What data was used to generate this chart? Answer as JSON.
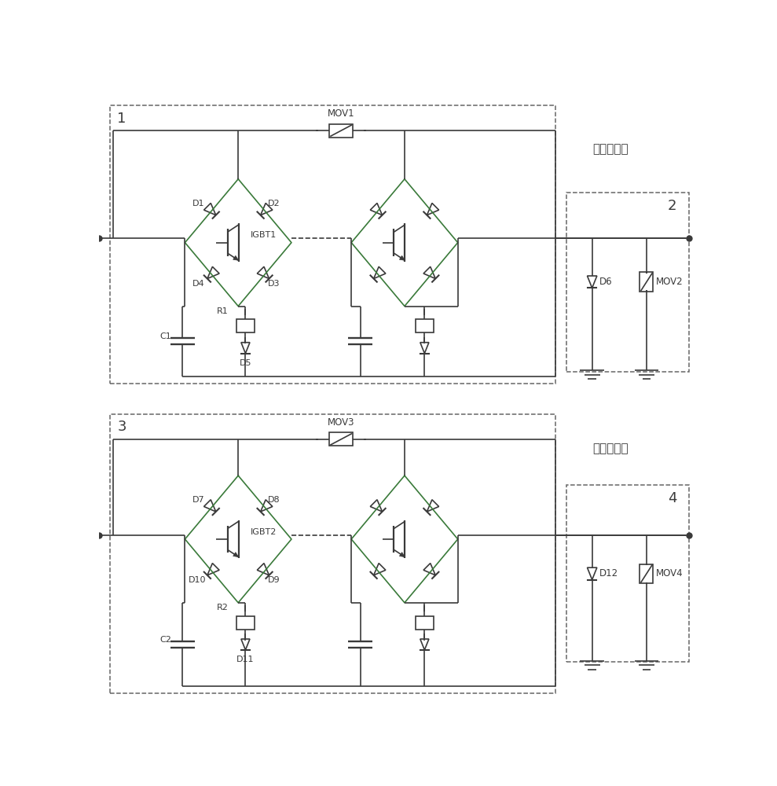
{
  "fig_width": 9.89,
  "fig_height": 10.0,
  "bg_color": "#ffffff",
  "line_color": "#3a3a3a",
  "dashed_color": "#666666",
  "green_color": "#3a7a3a",
  "label1": "1",
  "label2": "2",
  "label3": "3",
  "label4": "4",
  "text_pos_breaker": "正极断路器",
  "text_neg_breaker": "负极断路器",
  "mov1": "MOV1",
  "mov2": "MOV2",
  "mov3": "MOV3",
  "mov4": "MOV4",
  "igbt1": "IGBT1",
  "igbt2": "IGBT2"
}
